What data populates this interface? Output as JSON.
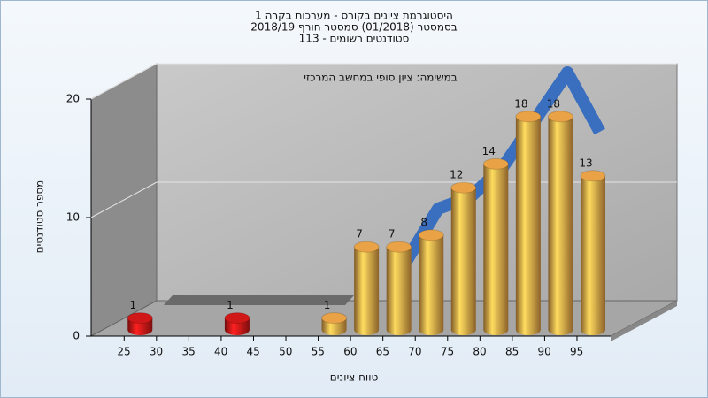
{
  "chart_data": {
    "type": "bar",
    "title": [
      "היסטוגרמת ציונים בקורס - מערכות בקרה 1",
      "בסמסטר  (01/2018)  סמסטר חורף 2018/19",
      "סטודנטים רשומים - 113"
    ],
    "annotation": "במשימה: ציון סופי במחשב המרכזי",
    "xlabel": "טווח ציונים",
    "ylabel": "מספר סטודנטים",
    "categories": [
      "25",
      "30",
      "35",
      "40",
      "45",
      "50",
      "55",
      "60",
      "65",
      "70",
      "75",
      "80",
      "85",
      "90",
      "95"
    ],
    "values": [
      1,
      null,
      null,
      1,
      null,
      null,
      1,
      7,
      7,
      8,
      12,
      14,
      18,
      18,
      13
    ],
    "colors": [
      "#d01818",
      "#d01818",
      "#d01818",
      "#d01818",
      "#d01818",
      "#d01818",
      "#e9a346",
      "#e9a346",
      "#e9a346",
      "#e9a346",
      "#e9a346",
      "#e9a346",
      "#e9a346",
      "#e9a346",
      "#e9a346"
    ],
    "trend": {
      "color": "#3a6fc0",
      "values": [
        null,
        null,
        null,
        null,
        null,
        null,
        null,
        null,
        4,
        8.5,
        9.5,
        12,
        16,
        20,
        15
      ]
    },
    "ylim": [
      0,
      20
    ],
    "yticks": [
      0,
      10,
      20
    ],
    "grid": true
  }
}
